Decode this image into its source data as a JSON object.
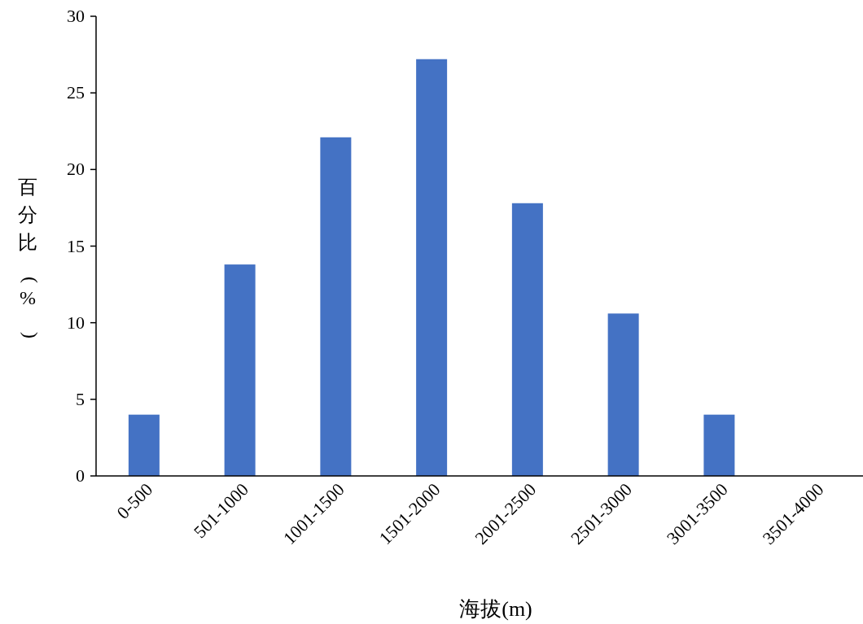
{
  "chart_data": {
    "type": "bar",
    "xlabel": "海拔(m)",
    "ylabel": "百分比(%)",
    "categories": [
      "0-500",
      "501-1000",
      "1001-1500",
      "1501-2000",
      "2001-2500",
      "2501-3000",
      "3001-3500",
      "3501-4000"
    ],
    "values": [
      4.0,
      13.8,
      22.1,
      27.2,
      17.8,
      10.6,
      4.0,
      0
    ],
    "color": "#4472c4",
    "ylim": [
      0,
      30
    ],
    "yticks": [
      0,
      5,
      10,
      15,
      20,
      25,
      30
    ],
    "grid": false
  }
}
